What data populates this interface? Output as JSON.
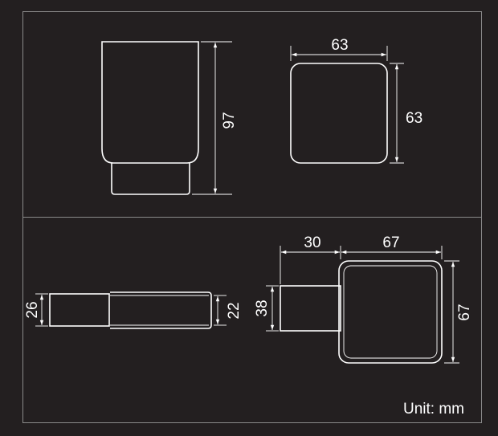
{
  "dimensions": {
    "cup_height": "97",
    "cup_top_width": "63",
    "cup_top_depth": "63",
    "side_thickness": "26",
    "side_cup_thickness": "22",
    "mount_height": "38",
    "mount_projection": "30",
    "holder_width": "67",
    "holder_height": "67"
  },
  "unit_label": "Unit: mm",
  "colors": {
    "background": "#231f20",
    "frame": "#8a8a8a",
    "lines": "#ffffff"
  }
}
